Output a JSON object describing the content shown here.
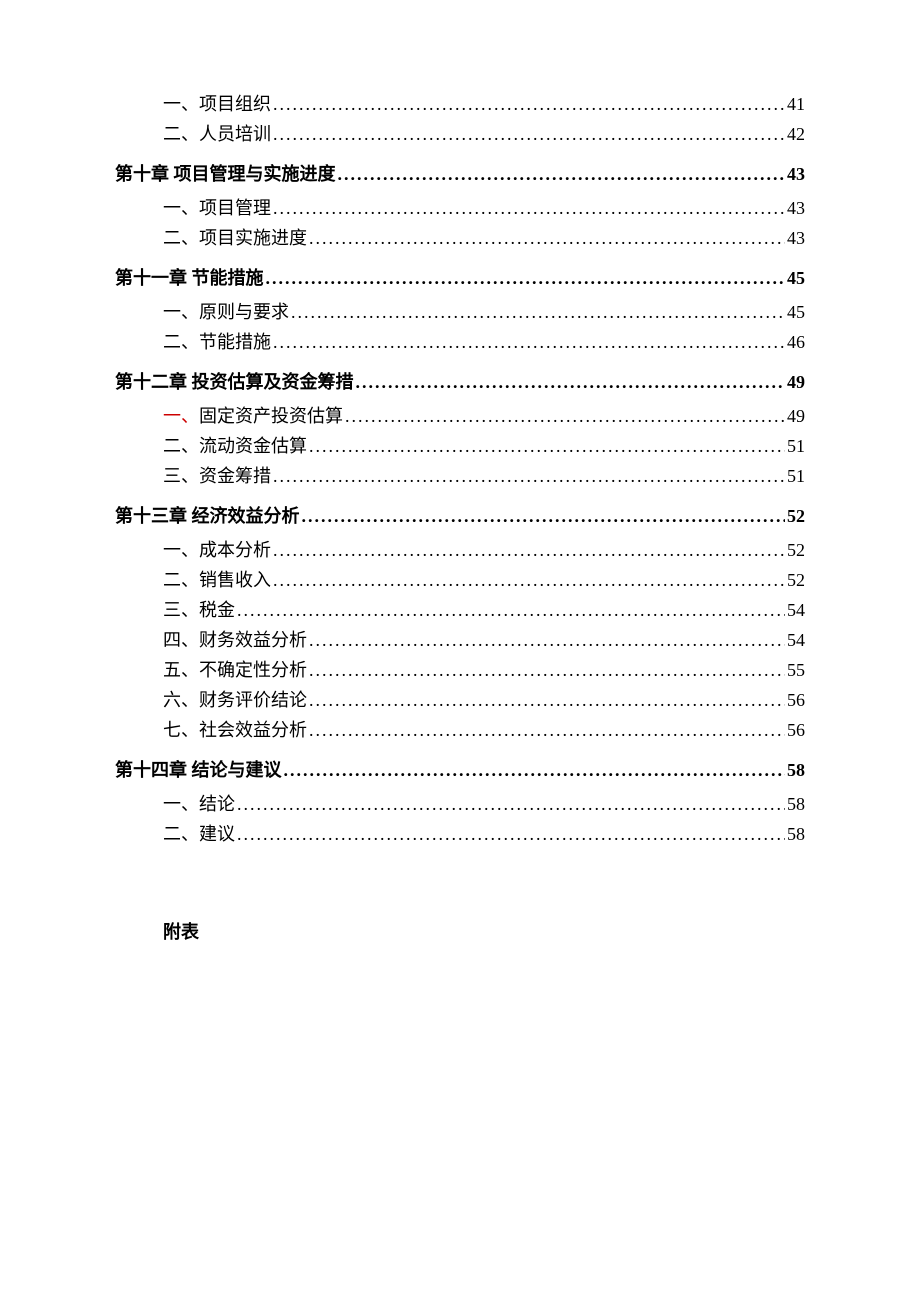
{
  "colors": {
    "text": "#000000",
    "background": "#ffffff",
    "marker_red": "#cc0000"
  },
  "typography": {
    "font_family": "SimSun",
    "body_fontsize": 18,
    "chapter_weight": "bold",
    "section_weight": "normal"
  },
  "leader_char": ".",
  "toc": [
    {
      "level": "section",
      "label": "一、项目组织",
      "page": "41",
      "marker_color": null
    },
    {
      "level": "section",
      "label": "二、人员培训",
      "page": "42",
      "marker_color": null
    },
    {
      "level": "chapter",
      "label": "第十章 项目管理与实施进度",
      "page": "43",
      "marker_color": null
    },
    {
      "level": "section",
      "label": "一、项目管理",
      "page": "43",
      "marker_color": null
    },
    {
      "level": "section",
      "label": "二、项目实施进度",
      "page": "43",
      "marker_color": null
    },
    {
      "level": "chapter",
      "label": "第十一章 节能措施",
      "page": "45",
      "marker_color": null
    },
    {
      "level": "section",
      "label": "一、原则与要求",
      "page": "45",
      "marker_color": null
    },
    {
      "level": "section",
      "label": "二、节能措施",
      "page": "46",
      "marker_color": null
    },
    {
      "level": "chapter",
      "label": "第十二章 投资估算及资金筹措",
      "page": "49",
      "marker_color": null
    },
    {
      "level": "section",
      "label": "一、固定资产投资估算",
      "page": "49",
      "marker_color": "red"
    },
    {
      "level": "section",
      "label": "二、流动资金估算",
      "page": "51",
      "marker_color": null
    },
    {
      "level": "section",
      "label": "三、资金筹措",
      "page": "51",
      "marker_color": null
    },
    {
      "level": "chapter",
      "label": "第十三章 经济效益分析",
      "page": "52",
      "marker_color": null
    },
    {
      "level": "section",
      "label": "一、成本分析",
      "page": "52",
      "marker_color": null
    },
    {
      "level": "section",
      "label": "二、销售收入",
      "page": "52",
      "marker_color": null
    },
    {
      "level": "section",
      "label": "三、税金",
      "page": "54",
      "marker_color": null
    },
    {
      "level": "section",
      "label": "四、财务效益分析",
      "page": "54",
      "marker_color": null
    },
    {
      "level": "section",
      "label": "五、不确定性分析",
      "page": "55",
      "marker_color": null
    },
    {
      "level": "section",
      "label": "六、财务评价结论",
      "page": "56",
      "marker_color": null
    },
    {
      "level": "section",
      "label": "七、社会效益分析",
      "page": "56",
      "marker_color": null
    },
    {
      "level": "chapter",
      "label": "第十四章 结论与建议",
      "page": "58",
      "marker_color": null
    },
    {
      "level": "section",
      "label": "一、结论",
      "page": "58",
      "marker_color": null
    },
    {
      "level": "section",
      "label": "二、建议",
      "page": "58",
      "marker_color": null
    }
  ],
  "appendix_label": "附表"
}
